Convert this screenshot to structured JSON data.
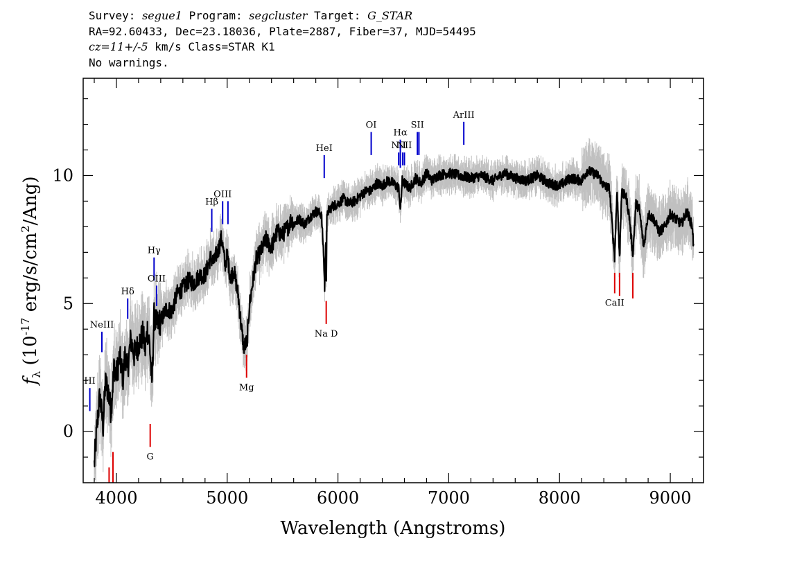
{
  "header": {
    "survey_label": "Survey:",
    "survey": "segue1",
    "program_label": "Program:",
    "program": "segcluster",
    "target_label": "Target:",
    "target": "G_STAR",
    "coords": "RA=92.60433, Dec=23.18036, Plate=2887, Fiber=37, MJD=54495",
    "cz": "cz=11+/-5",
    "cz_units": "km/s Class=STAR K1",
    "warnings": "No warnings."
  },
  "chart_data": {
    "type": "line",
    "xlabel": "Wavelength (Angstroms)",
    "ylabel": "f_λ (10^-17 erg/s/cm^2/Ang)",
    "xlim": [
      3700,
      9300
    ],
    "ylim": [
      -2,
      13.8
    ],
    "x_ticks": [
      4000,
      5000,
      6000,
      7000,
      8000,
      9000
    ],
    "y_ticks": [
      0,
      5,
      10
    ],
    "grid": false,
    "colors": {
      "flux": "#000000",
      "noise": "#c0c0c0",
      "emission": "#0000cc",
      "absorption": "#dd0000"
    },
    "series": [
      {
        "name": "flux",
        "x": [
          3800,
          3830,
          3850,
          3880,
          3900,
          3925,
          3950,
          3980,
          4000,
          4030,
          4060,
          4080,
          4100,
          4130,
          4160,
          4200,
          4240,
          4260,
          4280,
          4300,
          4320,
          4340,
          4360,
          4400,
          4450,
          4500,
          4550,
          4600,
          4650,
          4700,
          4750,
          4800,
          4850,
          4880,
          4900,
          4920,
          4950,
          4980,
          5000,
          5030,
          5060,
          5100,
          5130,
          5150,
          5180,
          5200,
          5230,
          5260,
          5300,
          5350,
          5400,
          5450,
          5500,
          5550,
          5580,
          5600,
          5650,
          5700,
          5750,
          5800,
          5850,
          5870,
          5880,
          5890,
          5895,
          5900,
          5910,
          5950,
          6000,
          6050,
          6100,
          6150,
          6200,
          6250,
          6300,
          6350,
          6400,
          6450,
          6500,
          6550,
          6563,
          6580,
          6600,
          6650,
          6700,
          6750,
          6800,
          6850,
          6900,
          7000,
          7100,
          7200,
          7300,
          7400,
          7500,
          7600,
          7700,
          7800,
          7900,
          8000,
          8100,
          8200,
          8250,
          8300,
          8350,
          8400,
          8450,
          8498,
          8520,
          8542,
          8560,
          8600,
          8630,
          8662,
          8690,
          8720,
          8760,
          8800,
          8850,
          8900,
          8950,
          9000,
          9050,
          9100,
          9150,
          9200,
          9210
        ],
        "values": [
          -1.3,
          0.5,
          1.4,
          0.2,
          1.9,
          1.6,
          0.8,
          2.6,
          2.2,
          2.9,
          2.1,
          3.1,
          2.4,
          3.6,
          3.0,
          3.4,
          3.8,
          3.2,
          4.0,
          3.4,
          1.8,
          4.5,
          4.2,
          4.3,
          4.8,
          4.7,
          5.4,
          5.6,
          5.9,
          5.8,
          6.1,
          6.1,
          6.8,
          6.6,
          6.9,
          7.1,
          7.6,
          6.5,
          6.9,
          6.0,
          6.3,
          5.3,
          4.0,
          3.3,
          3.5,
          4.9,
          5.8,
          6.7,
          7.0,
          7.5,
          7.2,
          7.8,
          7.7,
          8.0,
          8.3,
          8.1,
          8.3,
          8.1,
          8.4,
          8.6,
          8.5,
          7.0,
          5.6,
          7.5,
          5.9,
          8.3,
          8.6,
          8.8,
          8.9,
          9.1,
          8.9,
          9.0,
          9.2,
          9.4,
          9.4,
          9.7,
          9.6,
          9.8,
          9.7,
          9.5,
          8.6,
          9.8,
          9.7,
          9.5,
          9.9,
          9.7,
          10.1,
          9.8,
          10.0,
          10.1,
          10.0,
          9.9,
          10.0,
          9.8,
          10.1,
          9.9,
          9.8,
          10.0,
          9.7,
          9.6,
          9.9,
          9.8,
          10.2,
          10.1,
          10.0,
          9.6,
          9.5,
          6.8,
          9.5,
          6.7,
          9.3,
          9.2,
          8.4,
          6.9,
          8.9,
          8.7,
          7.2,
          8.5,
          8.3,
          7.8,
          8.0,
          8.5,
          8.3,
          8.1,
          8.6,
          8.0,
          7.2
        ]
      }
    ],
    "emission_lines": [
      {
        "label": "HI",
        "x": 3760,
        "y0": 0.8,
        "y1": 1.7
      },
      {
        "label": "NeIII",
        "x": 3869,
        "y0": 3.1,
        "y1": 3.9
      },
      {
        "label": "Hδ",
        "x": 4102,
        "y0": 4.4,
        "y1": 5.2
      },
      {
        "label": "Hγ",
        "x": 4340,
        "y0": 5.9,
        "y1": 6.8
      },
      {
        "label": "OIII",
        "x": 4363,
        "y0": 4.9,
        "y1": 5.7
      },
      {
        "label": "Hβ",
        "x": 4861,
        "y0": 7.8,
        "y1": 8.7
      },
      {
        "label": "OIII",
        "x": 4959,
        "y0": 8.1,
        "y1": 9.0
      },
      {
        "label": "",
        "x": 5007,
        "y0": 8.1,
        "y1": 9.0
      },
      {
        "label": "HeI",
        "x": 5876,
        "y0": 9.9,
        "y1": 10.8
      },
      {
        "label": "OI",
        "x": 6300,
        "y0": 10.8,
        "y1": 11.7
      },
      {
        "label": "NII",
        "x": 6548,
        "y0": 10.4,
        "y1": 10.9
      },
      {
        "label": "Hα",
        "x": 6563,
        "y0": 10.3,
        "y1": 11.4
      },
      {
        "label": "",
        "x": 6584,
        "y0": 10.4,
        "y1": 10.9
      },
      {
        "label": "NII",
        "x": 6600,
        "y0": 10.4,
        "y1": 10.9
      },
      {
        "label": "SII",
        "x": 6717,
        "y0": 10.8,
        "y1": 11.7
      },
      {
        "label": "",
        "x": 6731,
        "y0": 10.8,
        "y1": 11.7
      },
      {
        "label": "ArIII",
        "x": 7136,
        "y0": 11.2,
        "y1": 12.1
      }
    ],
    "absorption_lines": [
      {
        "label": "",
        "x": 3934,
        "y0": -2.0,
        "y1": -1.4
      },
      {
        "label": "",
        "x": 3969,
        "y0": -2.0,
        "y1": -0.8
      },
      {
        "label": "G",
        "x": 4305,
        "y0": -0.6,
        "y1": 0.3
      },
      {
        "label": "Mg",
        "x": 5175,
        "y0": 2.1,
        "y1": 3.0
      },
      {
        "label": "Na D",
        "x": 5894,
        "y0": 4.2,
        "y1": 5.1
      },
      {
        "label": "CaII",
        "x": 8498,
        "y0": 5.4,
        "y1": 6.2
      },
      {
        "label": "",
        "x": 8542,
        "y0": 5.3,
        "y1": 6.2
      },
      {
        "label": "",
        "x": 8662,
        "y0": 5.2,
        "y1": 6.2
      }
    ]
  }
}
